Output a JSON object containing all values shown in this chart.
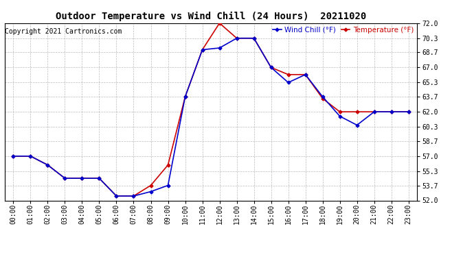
{
  "title": "Outdoor Temperature vs Wind Chill (24 Hours)  20211020",
  "copyright": "Copyright 2021 Cartronics.com",
  "legend_wind_chill": "Wind Chill (°F)",
  "legend_temperature": "Temperature (°F)",
  "hours": [
    0,
    1,
    2,
    3,
    4,
    5,
    6,
    7,
    8,
    9,
    10,
    11,
    12,
    13,
    14,
    15,
    16,
    17,
    18,
    19,
    20,
    21,
    22,
    23
  ],
  "temperature": [
    57.0,
    57.0,
    56.0,
    54.5,
    54.5,
    54.5,
    52.5,
    52.5,
    53.7,
    56.0,
    63.7,
    69.0,
    72.0,
    70.3,
    70.3,
    67.0,
    66.2,
    66.2,
    63.5,
    62.0,
    62.0,
    62.0,
    62.0,
    62.0
  ],
  "wind_chill": [
    57.0,
    57.0,
    56.0,
    54.5,
    54.5,
    54.5,
    52.5,
    52.5,
    53.0,
    53.7,
    63.7,
    69.0,
    69.2,
    70.3,
    70.3,
    67.0,
    65.3,
    66.2,
    63.7,
    61.5,
    60.5,
    62.0,
    62.0,
    62.0
  ],
  "ylim": [
    52.0,
    72.0
  ],
  "yticks": [
    52.0,
    53.7,
    55.3,
    57.0,
    58.7,
    60.3,
    62.0,
    63.7,
    65.3,
    67.0,
    68.7,
    70.3,
    72.0
  ],
  "temp_color": "#cc0000",
  "wind_color": "#0000cc",
  "bg_color": "#ffffff",
  "grid_color": "#aaaaaa",
  "marker": "D",
  "marker_size": 2.5,
  "line_width": 1.2,
  "title_fontsize": 10,
  "tick_fontsize": 7,
  "copyright_fontsize": 7,
  "legend_fontsize": 7.5
}
